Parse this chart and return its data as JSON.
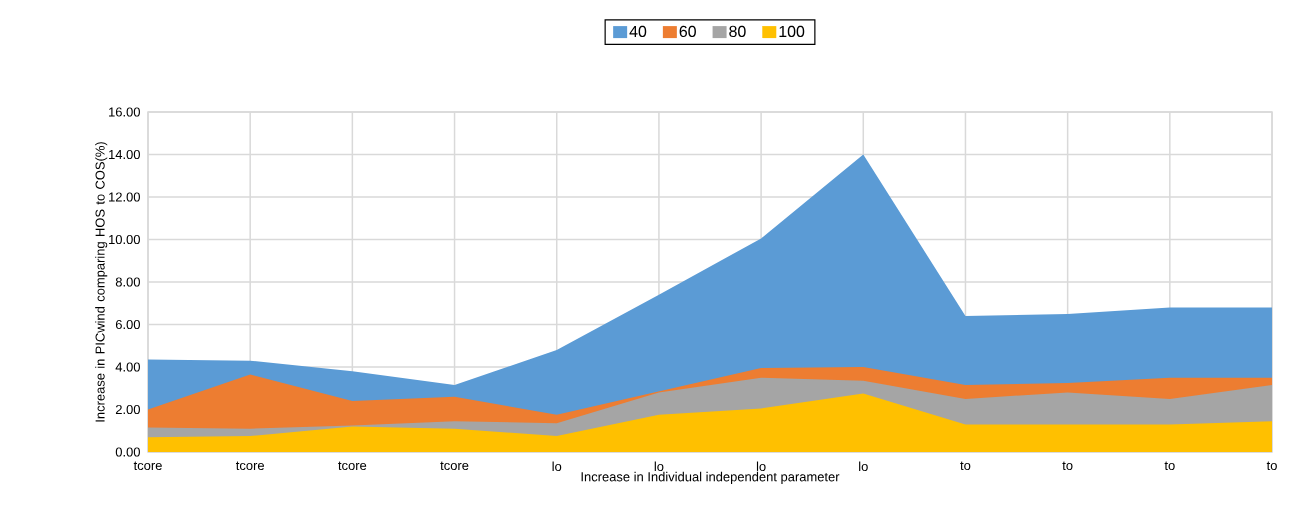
{
  "chart_data": {
    "type": "area",
    "xlabel": "Increase in Individual independent parameter",
    "ylabel": "Increase in PICwind  comparing HOS to COS(%)",
    "categories": [
      "tcore",
      "tcore",
      "tcore",
      "tcore",
      "lo",
      "lo",
      "lo",
      "lo",
      "to",
      "to",
      "to",
      "to"
    ],
    "series": [
      {
        "name": "40",
        "color": "#5b9bd5",
        "values": [
          4.35,
          4.3,
          3.8,
          3.15,
          4.8,
          7.4,
          10.05,
          14.0,
          6.4,
          6.5,
          6.8,
          6.8
        ]
      },
      {
        "name": "60",
        "color": "#ed7d31",
        "values": [
          2.0,
          3.65,
          2.4,
          2.6,
          1.75,
          2.85,
          3.95,
          4.0,
          3.15,
          3.25,
          3.5,
          3.5
        ]
      },
      {
        "name": "80",
        "color": "#a5a5a5",
        "values": [
          1.15,
          1.1,
          1.25,
          1.45,
          1.35,
          2.8,
          3.5,
          3.35,
          2.5,
          2.8,
          2.5,
          3.15
        ]
      },
      {
        "name": "100",
        "color": "#ffc000",
        "values": [
          0.7,
          0.75,
          1.2,
          1.1,
          0.75,
          1.75,
          2.05,
          2.75,
          1.3,
          1.3,
          1.3,
          1.45
        ]
      }
    ],
    "ylim": [
      0,
      16
    ],
    "yticks": [
      {
        "value": 0,
        "label": "0.00"
      },
      {
        "value": 2,
        "label": "2.00"
      },
      {
        "value": 4,
        "label": "4.00"
      },
      {
        "value": 6,
        "label": "6.00"
      },
      {
        "value": 8,
        "label": "8.00"
      },
      {
        "value": 10,
        "label": "10.00"
      },
      {
        "value": 12,
        "label": "12.00"
      },
      {
        "value": 14,
        "label": "14.00"
      },
      {
        "value": 16,
        "label": "16.00"
      }
    ],
    "grid": true,
    "legend": "top"
  }
}
